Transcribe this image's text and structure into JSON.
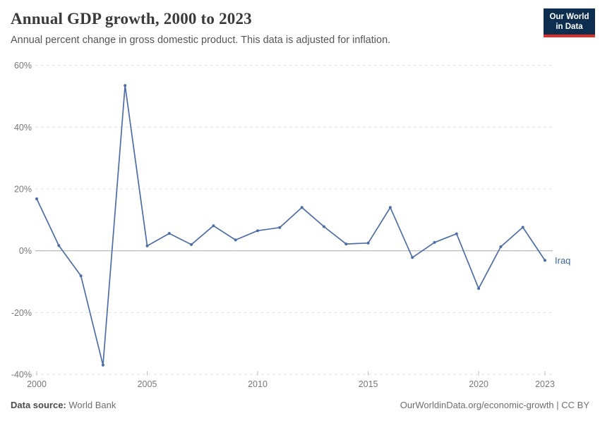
{
  "header": {
    "title": "Annual GDP growth, 2000 to 2023",
    "subtitle": "Annual percent change in gross domestic product. This data is adjusted for inflation.",
    "logo": {
      "line1": "Our World",
      "line2": "in Data",
      "bg_color": "#0d2e4e",
      "accent_color": "#dc2f27"
    }
  },
  "chart_data": {
    "type": "line",
    "title": "Annual GDP growth, 2000 to 2023",
    "subtitle": "Annual percent change in gross domestic product. This data is adjusted for inflation.",
    "xlabel": "",
    "ylabel": "",
    "x": [
      2000,
      2001,
      2002,
      2003,
      2004,
      2005,
      2006,
      2007,
      2008,
      2009,
      2010,
      2011,
      2012,
      2013,
      2014,
      2015,
      2016,
      2017,
      2018,
      2019,
      2020,
      2021,
      2022,
      2023
    ],
    "series": [
      {
        "name": "Iraq",
        "color": "#4d6da8",
        "label_color": "#3d649f",
        "values": [
          16.8,
          1.7,
          -8.1,
          -37.0,
          53.5,
          1.6,
          5.6,
          2.0,
          8.1,
          3.5,
          6.5,
          7.5,
          14.0,
          7.8,
          2.2,
          2.5,
          14.0,
          -2.2,
          2.7,
          5.5,
          -12.2,
          1.3,
          7.6,
          -3.1
        ]
      }
    ],
    "ylim": [
      -40,
      60
    ],
    "xlim": [
      2000,
      2023
    ],
    "y_ticks": [
      {
        "value": 60,
        "label": "60%"
      },
      {
        "value": 40,
        "label": "40%"
      },
      {
        "value": 20,
        "label": "20%"
      },
      {
        "value": 0,
        "label": "0%"
      },
      {
        "value": -20,
        "label": "-20%"
      },
      {
        "value": -40,
        "label": "-40%"
      }
    ],
    "x_ticks": [
      {
        "value": 2000,
        "label": "2000"
      },
      {
        "value": 2005,
        "label": "2005"
      },
      {
        "value": 2010,
        "label": "2010"
      },
      {
        "value": 2015,
        "label": "2015"
      },
      {
        "value": 2020,
        "label": "2020"
      },
      {
        "value": 2023,
        "label": "2023"
      }
    ],
    "grid": "horizontal-dashed",
    "zero_line": true,
    "legend_position": "end-of-line-label",
    "colors": {
      "gridline": "#dcdcdc",
      "zero_line": "#a6a6a6",
      "tick_label": "#787878",
      "tick_mark": "#bdbdbd"
    }
  },
  "footer": {
    "source_label": "Data source:",
    "source_value": "World Bank",
    "attribution": "OurWorldinData.org/economic-growth | CC BY"
  }
}
